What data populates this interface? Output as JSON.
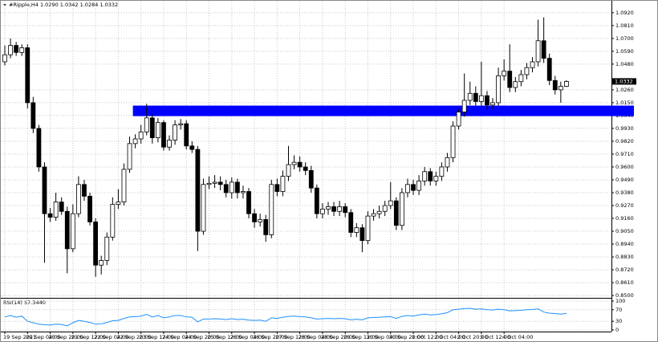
{
  "chart_data": [
    {
      "type": "candlestick",
      "title": "#Ripple,H4 1.0290 1.0342 1.0284 1.0332",
      "categories": [
        "19 Sep 2021",
        null,
        null,
        null,
        "20 Sep 04:00",
        null,
        null,
        null,
        "20 Sep 20:00",
        null,
        null,
        null,
        "21 Sep 12:00",
        null,
        null,
        null,
        "22 Sep 04:00",
        null,
        null,
        null,
        "22 Sep 20:00",
        null,
        null,
        null,
        "23 Sep 12:00",
        null,
        null,
        null,
        "24 Sep 04:00",
        null,
        null,
        null,
        "24 Sep 20:00",
        null,
        null,
        null,
        "25 Sep 12:00",
        null,
        null,
        null,
        "26 Sep 04:00",
        null,
        null,
        null,
        "26 Sep 20:00",
        null,
        null,
        null,
        "27 Sep 12:00",
        null,
        null,
        null,
        "28 Sep 04:00",
        null,
        null,
        null,
        "28 Sep 20:00",
        null,
        null,
        null,
        "29 Sep 12:00",
        null,
        null,
        null,
        "30 Sep 04:00",
        null,
        null,
        null,
        "30 Sep 20:00",
        null,
        null,
        null,
        "1 Oct 12:00",
        null,
        null,
        null,
        "2 Oct 04:00",
        null,
        null,
        null,
        "2 Oct 20:00",
        null,
        null,
        null,
        "3 Oct 12:00",
        null,
        null,
        null,
        "4 Oct 04:00",
        null,
        null,
        null,
        null,
        null,
        null,
        null,
        null,
        null,
        null,
        null
      ],
      "open": [
        1.05,
        1.056,
        1.064,
        1.058,
        1.062,
        1.015,
        0.993,
        0.96,
        0.92,
        0.917,
        0.93,
        0.922,
        0.89,
        0.92,
        0.945,
        0.935,
        0.913,
        0.876,
        0.88,
        0.9,
        0.928,
        0.93,
        0.958,
        0.98,
        0.984,
        0.99,
        1.002,
        0.985,
        0.998,
        0.977,
        0.983,
        0.996,
        0.997,
        0.978,
        0.975,
        0.905,
        0.945,
        0.946,
        0.947,
        0.945,
        0.938,
        0.947,
        0.938,
        0.939,
        0.92,
        0.913,
        0.915,
        0.902,
        0.945,
        0.939,
        0.952,
        0.962,
        0.964,
        0.96,
        0.957,
        0.942,
        0.92,
        0.924,
        0.926,
        0.922,
        0.926,
        0.921,
        0.904,
        0.908,
        0.897,
        0.918,
        0.92,
        0.922,
        0.927,
        0.931,
        0.91,
        0.938,
        0.945,
        0.94,
        0.948,
        0.956,
        0.948,
        0.952,
        0.96,
        0.968,
        0.995,
        1.007,
        1.017,
        1.023,
        1.016,
        1.021,
        1.013,
        1.015,
        1.038,
        1.042,
        1.028,
        1.033,
        1.039,
        1.045,
        1.05,
        1.068,
        1.053,
        1.034,
        1.026,
        1.029
      ],
      "high": [
        1.064,
        1.07,
        1.067,
        1.065,
        1.065,
        1.02,
        0.996,
        0.964,
        0.925,
        0.938,
        0.934,
        0.926,
        0.928,
        0.952,
        0.949,
        0.938,
        0.916,
        0.884,
        0.904,
        0.934,
        0.941,
        0.963,
        0.986,
        0.988,
        0.996,
        1.014,
        1.005,
        1.002,
        1.0,
        0.987,
        1.0,
        1.001,
        1.0,
        0.982,
        0.978,
        0.95,
        0.952,
        0.953,
        0.952,
        0.949,
        0.951,
        0.95,
        0.944,
        0.942,
        0.924,
        0.92,
        0.919,
        0.949,
        0.95,
        0.957,
        0.978,
        0.97,
        0.969,
        0.964,
        0.961,
        0.945,
        0.929,
        0.93,
        0.93,
        0.931,
        0.929,
        0.924,
        0.912,
        0.911,
        0.922,
        0.924,
        0.927,
        0.931,
        0.947,
        0.934,
        0.942,
        0.95,
        0.949,
        0.953,
        0.96,
        0.959,
        0.956,
        0.964,
        0.972,
        0.999,
        1.01,
        1.04,
        1.033,
        1.029,
        1.05,
        1.025,
        1.019,
        1.045,
        1.052,
        1.065,
        1.037,
        1.043,
        1.049,
        1.054,
        1.086,
        1.088,
        1.057,
        1.038,
        1.033,
        1.0342
      ],
      "low": [
        1.047,
        1.053,
        1.055,
        1.055,
        1.01,
        0.989,
        0.956,
        0.878,
        0.913,
        0.914,
        0.919,
        0.869,
        0.887,
        0.917,
        0.931,
        0.91,
        0.866,
        0.868,
        0.876,
        0.897,
        0.924,
        0.927,
        0.955,
        0.976,
        0.98,
        0.987,
        0.98,
        0.981,
        0.974,
        0.974,
        0.979,
        0.992,
        0.975,
        0.972,
        0.888,
        0.902,
        0.941,
        0.942,
        0.94,
        0.934,
        0.933,
        0.933,
        0.933,
        0.916,
        0.908,
        0.909,
        0.896,
        0.899,
        0.935,
        0.935,
        0.948,
        0.958,
        0.956,
        0.953,
        0.938,
        0.916,
        0.916,
        0.919,
        0.918,
        0.918,
        0.917,
        0.9,
        0.9,
        0.887,
        0.894,
        0.914,
        0.916,
        0.918,
        0.924,
        0.906,
        0.906,
        0.934,
        0.936,
        0.936,
        0.944,
        0.944,
        0.944,
        0.948,
        0.956,
        0.964,
        0.992,
        1.003,
        1.013,
        1.012,
        1.012,
        1.009,
        1.01,
        1.012,
        1.034,
        1.024,
        1.024,
        1.029,
        1.035,
        1.041,
        1.046,
        1.049,
        1.03,
        1.022,
        1.015,
        1.0284
      ],
      "close": [
        1.056,
        1.064,
        1.058,
        1.062,
        1.015,
        0.993,
        0.96,
        0.92,
        0.917,
        0.93,
        0.922,
        0.89,
        0.92,
        0.945,
        0.935,
        0.913,
        0.876,
        0.88,
        0.9,
        0.928,
        0.93,
        0.958,
        0.98,
        0.984,
        0.99,
        1.002,
        0.985,
        0.998,
        0.977,
        0.983,
        0.996,
        0.997,
        0.978,
        0.975,
        0.905,
        0.945,
        0.946,
        0.947,
        0.945,
        0.938,
        0.947,
        0.938,
        0.939,
        0.92,
        0.913,
        0.915,
        0.902,
        0.945,
        0.939,
        0.952,
        0.962,
        0.964,
        0.96,
        0.957,
        0.942,
        0.92,
        0.924,
        0.926,
        0.922,
        0.926,
        0.921,
        0.904,
        0.908,
        0.897,
        0.918,
        0.92,
        0.922,
        0.927,
        0.931,
        0.91,
        0.938,
        0.945,
        0.94,
        0.948,
        0.956,
        0.948,
        0.952,
        0.96,
        0.968,
        0.995,
        1.007,
        1.017,
        1.023,
        1.016,
        1.021,
        1.013,
        1.015,
        1.038,
        1.042,
        1.028,
        1.033,
        1.039,
        1.045,
        1.05,
        1.068,
        1.053,
        1.034,
        1.026,
        1.029,
        1.0332
      ],
      "up_color": "#ffffff",
      "down_color": "#000000",
      "ylim": [
        0.848,
        1.1015
      ],
      "yticks": [
        {
          "value": 1.092,
          "label": "1.0920"
        },
        {
          "value": 1.081,
          "label": "1.0810"
        },
        {
          "value": 1.07,
          "label": "1.0700"
        },
        {
          "value": 1.059,
          "label": "1.0590"
        },
        {
          "value": 1.048,
          "label": "1.0480"
        },
        {
          "value": 1.026,
          "label": "1.0260"
        },
        {
          "value": 1.015,
          "label": "1.0150"
        },
        {
          "value": 1.004,
          "label": "1.0040"
        },
        {
          "value": 0.993,
          "label": "0.9930"
        },
        {
          "value": 0.982,
          "label": "0.9820"
        },
        {
          "value": 0.971,
          "label": "0.9710"
        },
        {
          "value": 0.96,
          "label": "0.9600"
        },
        {
          "value": 0.949,
          "label": "0.9490"
        },
        {
          "value": 0.938,
          "label": "0.9380"
        },
        {
          "value": 0.927,
          "label": "0.9270"
        },
        {
          "value": 0.916,
          "label": "0.9160"
        },
        {
          "value": 0.905,
          "label": "0.9050"
        },
        {
          "value": 0.894,
          "label": "0.8940"
        },
        {
          "value": 0.883,
          "label": "0.8830"
        },
        {
          "value": 0.872,
          "label": "0.8720"
        },
        {
          "value": 0.861,
          "label": "0.8610"
        },
        {
          "value": 0.85,
          "label": "0.8500"
        }
      ],
      "grid": true,
      "last_price": {
        "value": 1.0332,
        "label": "1.0332"
      },
      "zone": {
        "low": 1.0035,
        "high": 1.0125,
        "start": 23,
        "color": "#0000ff"
      }
    },
    {
      "type": "line",
      "title": "RSI(14) 57.3440",
      "values": [
        45,
        50,
        44,
        48,
        30,
        25,
        20,
        18,
        17,
        20,
        19,
        14,
        25,
        33,
        30,
        26,
        20,
        21,
        26,
        32,
        33,
        40,
        45,
        46,
        48,
        54,
        45,
        50,
        42,
        45,
        50,
        50,
        45,
        44,
        28,
        38,
        38,
        39,
        38,
        36,
        39,
        36,
        37,
        34,
        33,
        34,
        30,
        42,
        40,
        44,
        47,
        48,
        46,
        45,
        42,
        38,
        39,
        40,
        39,
        40,
        39,
        35,
        37,
        35,
        42,
        43,
        44,
        45,
        46,
        40,
        47,
        50,
        48,
        52,
        55,
        52,
        53,
        56,
        60,
        70,
        72,
        74,
        75,
        72,
        73,
        70,
        69,
        72,
        70,
        66,
        67,
        68,
        70,
        71,
        73,
        62,
        58,
        57,
        55,
        57.344
      ],
      "color": "#1e90ff",
      "ylim": [
        0,
        100
      ],
      "yticks": [
        100,
        70,
        30,
        0
      ]
    }
  ]
}
